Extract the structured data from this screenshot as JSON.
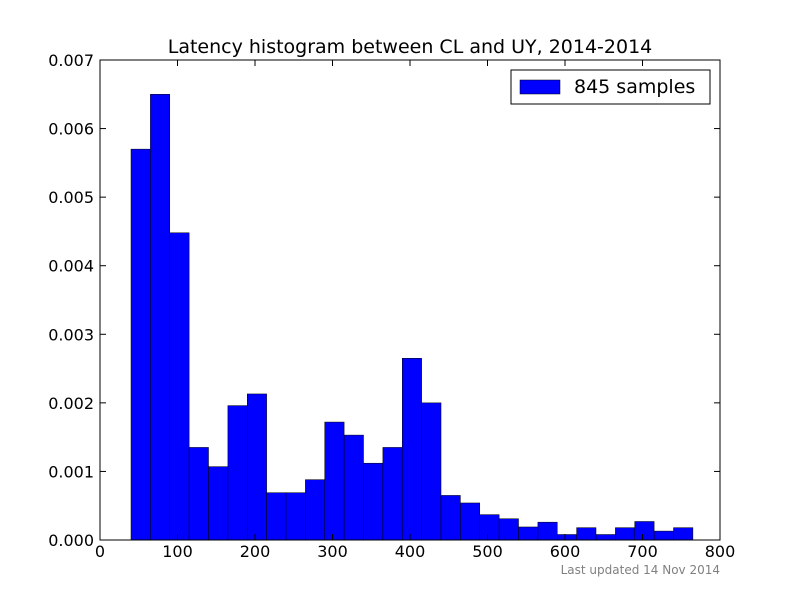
{
  "chart_data": {
    "type": "bar",
    "title": "Latency histogram between CL and UY, 2014-2014",
    "xlabel": "",
    "ylabel": "",
    "xlim": [
      0,
      800
    ],
    "ylim": [
      0,
      0.007
    ],
    "xticks": [
      0,
      100,
      200,
      300,
      400,
      500,
      600,
      700,
      800
    ],
    "yticks": [
      "0.000",
      "0.001",
      "0.002",
      "0.003",
      "0.004",
      "0.005",
      "0.006",
      "0.007"
    ],
    "grid": false,
    "legend_position": "top-right",
    "bar_color": "#0000ff",
    "bin_edges": [
      40,
      65,
      90,
      115,
      140,
      165,
      190,
      215,
      240,
      265,
      290,
      315,
      340,
      365,
      390,
      415,
      440,
      465,
      490,
      515,
      540,
      565,
      590,
      615,
      640,
      665,
      690,
      715,
      740,
      765
    ],
    "series": [
      {
        "name": "845 samples",
        "values": [
          0.0057,
          0.0065,
          0.00448,
          0.00135,
          0.00107,
          0.00196,
          0.00213,
          0.00069,
          0.00069,
          0.00088,
          0.00172,
          0.00153,
          0.00112,
          0.00135,
          0.00265,
          0.002,
          0.00065,
          0.00054,
          0.00037,
          0.00031,
          0.00019,
          0.00026,
          8e-05,
          0.00018,
          8e-05,
          0.00018,
          0.00027,
          0.00013,
          0.00018
        ]
      }
    ],
    "footnote": "Last updated 14 Nov 2014"
  }
}
